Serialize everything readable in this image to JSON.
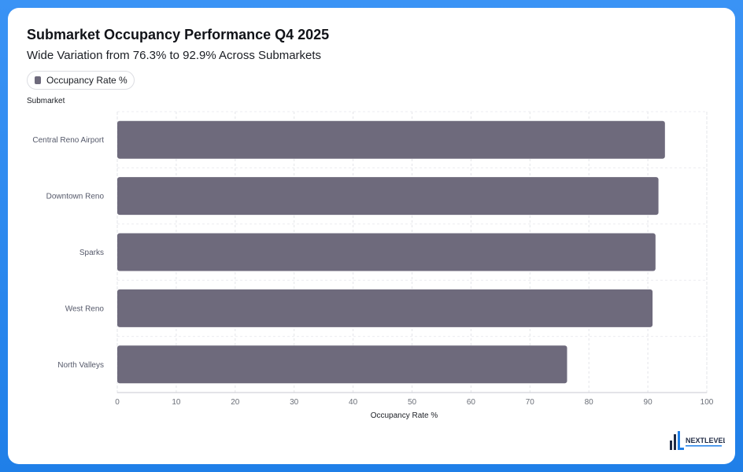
{
  "chart_data": {
    "type": "bar",
    "orientation": "horizontal",
    "title": "Submarket Occupancy Performance Q4 2025",
    "subtitle": "Wide Variation from 76.3% to 92.9% Across Submarkets",
    "categories": [
      "Central Reno Airport",
      "Downtown Reno",
      "Sparks",
      "West Reno",
      "North Valleys"
    ],
    "series": [
      {
        "name": "Occupancy Rate %",
        "values": [
          92.9,
          91.8,
          91.3,
          90.8,
          76.3
        ],
        "color": "#6e6a7c"
      }
    ],
    "xlabel": "Occupancy Rate %",
    "ylabel": "Submarket",
    "xlim": [
      0,
      100
    ],
    "xticks": [
      "0",
      "10",
      "20",
      "30",
      "40",
      "50",
      "60",
      "70",
      "80",
      "90",
      "100"
    ],
    "grid": true,
    "legend_position": "top-left"
  },
  "logo": {
    "text": "NEXTLEVEL",
    "colors": {
      "primary": "#1f2a44",
      "accent": "#1f7fe8"
    }
  }
}
